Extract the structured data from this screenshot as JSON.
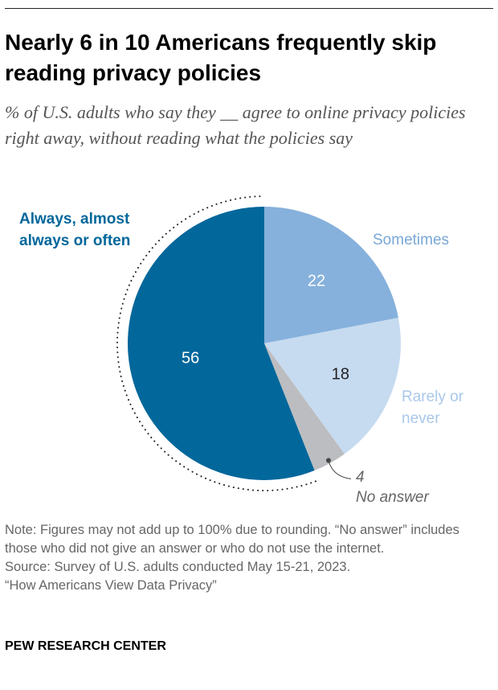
{
  "title": "Nearly 6 in 10 Americans frequently skip reading privacy policies",
  "subtitle": "% of U.S. adults who say they __ agree to online privacy policies right away, without reading what the policies say",
  "chart_data": {
    "type": "pie",
    "start": "12 o'clock, clockwise",
    "slices": [
      {
        "label": "Sometimes",
        "value": 22,
        "color": "#86b1dc",
        "label_color": "#7aa7d6",
        "value_color": "#ffffff"
      },
      {
        "label": "Rarely or never",
        "value": 18,
        "color": "#c6dbf0",
        "label_color": "#a9c8ea",
        "value_color": "#222222"
      },
      {
        "label": "No answer",
        "value": 4,
        "color": "#bcbdc0",
        "label_color": "#666666",
        "value_color": "#666666"
      },
      {
        "label": "Always, almost always or often",
        "value": 56,
        "color": "#02679b",
        "label_color": "#02679b",
        "value_color": "#ffffff"
      }
    ],
    "highlight": "dotted outline around Always, almost always or often"
  },
  "note": "Note: Figures may not add up to 100% due to rounding. “No answer” includes those who did not give an answer or who do not use the internet.",
  "source": "Source: Survey of U.S. adults conducted May 15-21, 2023.",
  "report": "“How Americans View Data Privacy”",
  "brand": "PEW RESEARCH CENTER"
}
